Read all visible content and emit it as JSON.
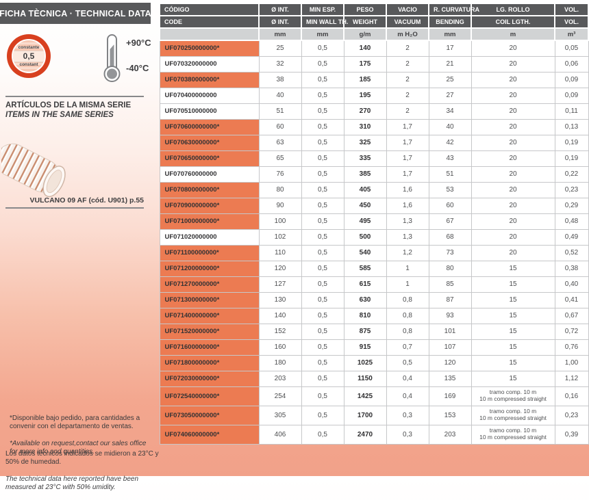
{
  "header": {
    "title": "FICHA TÈCNICA · TECHNICAL DATA"
  },
  "badge": {
    "top_label": "constante",
    "value": "0,5",
    "bottom_label": "constant"
  },
  "temperature": {
    "max": "+90°C",
    "min": "-40°C"
  },
  "series": {
    "title_es": "ARTÍCULOS DE LA MISMA SERIE",
    "title_en": "ITEMS IN THE SAME SERIES",
    "related_product": "VULCANO 09 AF (cód. U901) p.55"
  },
  "footnotes": {
    "availability_es": "*Disponible bajo pedido, para cantidades a\nconvenir con el departamento de ventas.",
    "availability_en": "*Available on request,contact our sales office\nfor more info and quantities.",
    "conditions_es": "Los datos técnicos indicados se midieron a 23°C y\n50% de humedad.",
    "conditions_en": "The technical data here reported have been\nmeasured at 23°C with 50% umidity."
  },
  "colors": {
    "header_gray": "#58595b",
    "units_gray": "#d1d3d4",
    "row_orange": "#ec7b52",
    "badge_red": "#d8401f",
    "page_salmon": "#f1a189"
  },
  "table": {
    "columns": [
      {
        "es": "CÓDIGO",
        "en": "CODE",
        "unit": ""
      },
      {
        "es": "Ø INT.",
        "en": "Ø INT.",
        "unit": "mm"
      },
      {
        "es": "MIN ESP.",
        "en": "MIN WALL TH.",
        "unit": "mm"
      },
      {
        "es": "PESO",
        "en": "WEIGHT",
        "unit": "g/m"
      },
      {
        "es": "VACIO",
        "en": "VACUUM",
        "unit": "m H₂O"
      },
      {
        "es": "R. CURVATURA",
        "en": "BENDING",
        "unit": "mm"
      },
      {
        "es": "LG. ROLLO",
        "en": "COIL LGTH.",
        "unit": "m"
      },
      {
        "es": "VOL.",
        "en": "VOL.",
        "unit": "m³"
      }
    ],
    "rows": [
      {
        "code": "UF070250000000*",
        "starred": true,
        "diameter_mm": "25",
        "min_wall_mm": "0,5",
        "weight_gm": "140",
        "vacuum_mh2o": "2",
        "bending_mm": "17",
        "coil_length": "20",
        "volume_m3": "0,05",
        "tall": false
      },
      {
        "code": "UF070320000000",
        "starred": false,
        "diameter_mm": "32",
        "min_wall_mm": "0,5",
        "weight_gm": "175",
        "vacuum_mh2o": "2",
        "bending_mm": "21",
        "coil_length": "20",
        "volume_m3": "0,06",
        "tall": false
      },
      {
        "code": "UF070380000000*",
        "starred": true,
        "diameter_mm": "38",
        "min_wall_mm": "0,5",
        "weight_gm": "185",
        "vacuum_mh2o": "2",
        "bending_mm": "25",
        "coil_length": "20",
        "volume_m3": "0,09",
        "tall": false
      },
      {
        "code": "UF070400000000",
        "starred": false,
        "diameter_mm": "40",
        "min_wall_mm": "0,5",
        "weight_gm": "195",
        "vacuum_mh2o": "2",
        "bending_mm": "27",
        "coil_length": "20",
        "volume_m3": "0,09",
        "tall": false
      },
      {
        "code": "UF070510000000",
        "starred": false,
        "diameter_mm": "51",
        "min_wall_mm": "0,5",
        "weight_gm": "270",
        "vacuum_mh2o": "2",
        "bending_mm": "34",
        "coil_length": "20",
        "volume_m3": "0,11",
        "tall": false
      },
      {
        "code": "UF070600000000*",
        "starred": true,
        "diameter_mm": "60",
        "min_wall_mm": "0,5",
        "weight_gm": "310",
        "vacuum_mh2o": "1,7",
        "bending_mm": "40",
        "coil_length": "20",
        "volume_m3": "0,13",
        "tall": false
      },
      {
        "code": "UF070630000000*",
        "starred": true,
        "diameter_mm": "63",
        "min_wall_mm": "0,5",
        "weight_gm": "325",
        "vacuum_mh2o": "1,7",
        "bending_mm": "42",
        "coil_length": "20",
        "volume_m3": "0,19",
        "tall": false
      },
      {
        "code": "UF070650000000*",
        "starred": true,
        "diameter_mm": "65",
        "min_wall_mm": "0,5",
        "weight_gm": "335",
        "vacuum_mh2o": "1,7",
        "bending_mm": "43",
        "coil_length": "20",
        "volume_m3": "0,19",
        "tall": false
      },
      {
        "code": "UF070760000000",
        "starred": false,
        "diameter_mm": "76",
        "min_wall_mm": "0,5",
        "weight_gm": "385",
        "vacuum_mh2o": "1,7",
        "bending_mm": "51",
        "coil_length": "20",
        "volume_m3": "0,22",
        "tall": false
      },
      {
        "code": "UF070800000000*",
        "starred": true,
        "diameter_mm": "80",
        "min_wall_mm": "0,5",
        "weight_gm": "405",
        "vacuum_mh2o": "1,6",
        "bending_mm": "53",
        "coil_length": "20",
        "volume_m3": "0,23",
        "tall": false
      },
      {
        "code": "UF070900000000*",
        "starred": true,
        "diameter_mm": "90",
        "min_wall_mm": "0,5",
        "weight_gm": "450",
        "vacuum_mh2o": "1,6",
        "bending_mm": "60",
        "coil_length": "20",
        "volume_m3": "0,29",
        "tall": false
      },
      {
        "code": "UF071000000000*",
        "starred": true,
        "diameter_mm": "100",
        "min_wall_mm": "0,5",
        "weight_gm": "495",
        "vacuum_mh2o": "1,3",
        "bending_mm": "67",
        "coil_length": "20",
        "volume_m3": "0,48",
        "tall": false
      },
      {
        "code": "UF071020000000",
        "starred": false,
        "diameter_mm": "102",
        "min_wall_mm": "0,5",
        "weight_gm": "500",
        "vacuum_mh2o": "1,3",
        "bending_mm": "68",
        "coil_length": "20",
        "volume_m3": "0,49",
        "tall": false
      },
      {
        "code": "UF071100000000*",
        "starred": true,
        "diameter_mm": "110",
        "min_wall_mm": "0,5",
        "weight_gm": "540",
        "vacuum_mh2o": "1,2",
        "bending_mm": "73",
        "coil_length": "20",
        "volume_m3": "0,52",
        "tall": false
      },
      {
        "code": "UF071200000000*",
        "starred": true,
        "diameter_mm": "120",
        "min_wall_mm": "0,5",
        "weight_gm": "585",
        "vacuum_mh2o": "1",
        "bending_mm": "80",
        "coil_length": "15",
        "volume_m3": "0,38",
        "tall": false
      },
      {
        "code": "UF071270000000*",
        "starred": true,
        "diameter_mm": "127",
        "min_wall_mm": "0,5",
        "weight_gm": "615",
        "vacuum_mh2o": "1",
        "bending_mm": "85",
        "coil_length": "15",
        "volume_m3": "0,40",
        "tall": false
      },
      {
        "code": "UF071300000000*",
        "starred": true,
        "diameter_mm": "130",
        "min_wall_mm": "0,5",
        "weight_gm": "630",
        "vacuum_mh2o": "0,8",
        "bending_mm": "87",
        "coil_length": "15",
        "volume_m3": "0,41",
        "tall": false
      },
      {
        "code": "UF071400000000*",
        "starred": true,
        "diameter_mm": "140",
        "min_wall_mm": "0,5",
        "weight_gm": "810",
        "vacuum_mh2o": "0,8",
        "bending_mm": "93",
        "coil_length": "15",
        "volume_m3": "0,67",
        "tall": false
      },
      {
        "code": "UF071520000000*",
        "starred": true,
        "diameter_mm": "152",
        "min_wall_mm": "0,5",
        "weight_gm": "875",
        "vacuum_mh2o": "0,8",
        "bending_mm": "101",
        "coil_length": "15",
        "volume_m3": "0,72",
        "tall": false
      },
      {
        "code": "UF071600000000*",
        "starred": true,
        "diameter_mm": "160",
        "min_wall_mm": "0,5",
        "weight_gm": "915",
        "vacuum_mh2o": "0,7",
        "bending_mm": "107",
        "coil_length": "15",
        "volume_m3": "0,76",
        "tall": false
      },
      {
        "code": "UF071800000000*",
        "starred": true,
        "diameter_mm": "180",
        "min_wall_mm": "0,5",
        "weight_gm": "1025",
        "vacuum_mh2o": "0,5",
        "bending_mm": "120",
        "coil_length": "15",
        "volume_m3": "1,00",
        "tall": false
      },
      {
        "code": "UF072030000000*",
        "starred": true,
        "diameter_mm": "203",
        "min_wall_mm": "0,5",
        "weight_gm": "1150",
        "vacuum_mh2o": "0,4",
        "bending_mm": "135",
        "coil_length": "15",
        "volume_m3": "1,12",
        "tall": false
      },
      {
        "code": "UF072540000000*",
        "starred": true,
        "diameter_mm": "254",
        "min_wall_mm": "0,5",
        "weight_gm": "1425",
        "vacuum_mh2o": "0,4",
        "bending_mm": "169",
        "coil_length": "tramo comp. 10 m\n10 m compressed straight",
        "volume_m3": "0,16",
        "tall": true
      },
      {
        "code": "UF073050000000*",
        "starred": true,
        "diameter_mm": "305",
        "min_wall_mm": "0,5",
        "weight_gm": "1700",
        "vacuum_mh2o": "0,3",
        "bending_mm": "153",
        "coil_length": "tramo comp. 10 m\n10 m compressed straight",
        "volume_m3": "0,23",
        "tall": true
      },
      {
        "code": "UF074060000000*",
        "starred": true,
        "diameter_mm": "406",
        "min_wall_mm": "0,5",
        "weight_gm": "2470",
        "vacuum_mh2o": "0,3",
        "bending_mm": "203",
        "coil_length": "tramo comp. 10 m\n10 m compressed straight",
        "volume_m3": "0,39",
        "tall": true
      }
    ]
  }
}
